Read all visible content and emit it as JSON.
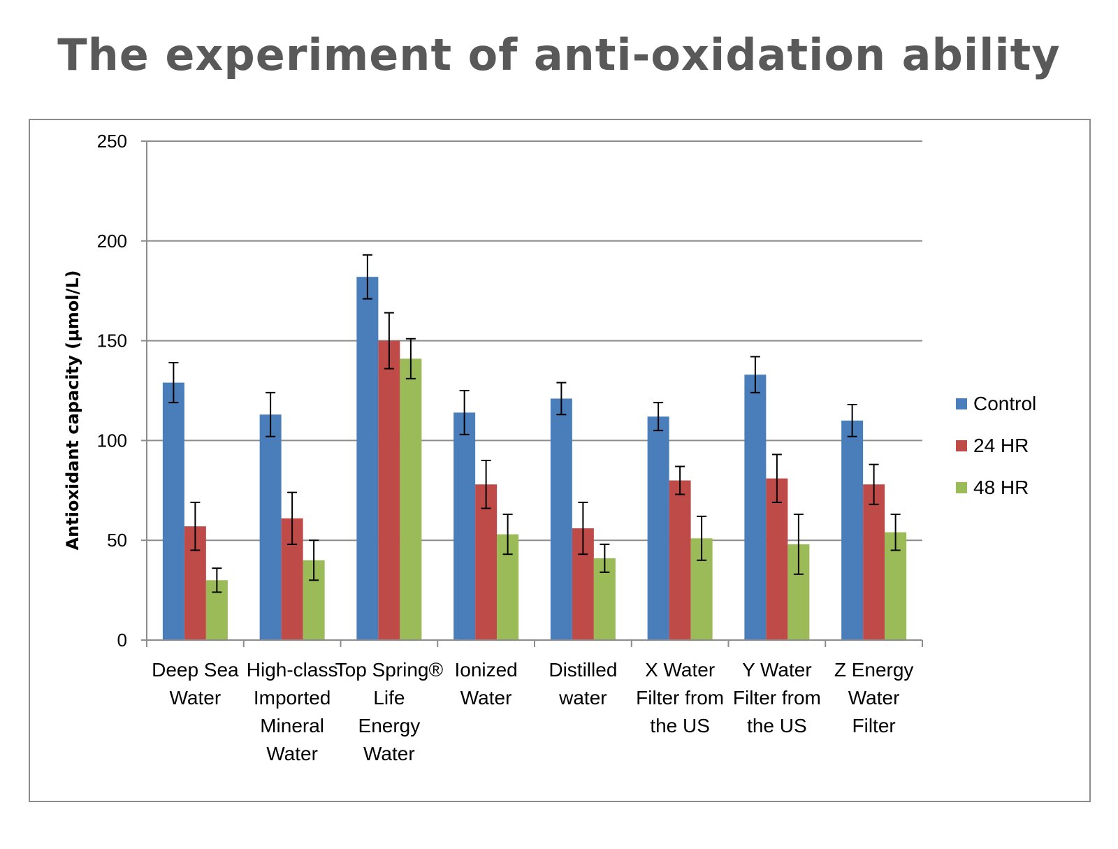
{
  "title": "The experiment of anti-oxidation ability",
  "chart_data": {
    "type": "bar",
    "title": "The experiment of anti-oxidation ability",
    "xlabel": "",
    "ylabel": "Antioxidant capacity (μmol/L)",
    "ylim": [
      0,
      250
    ],
    "yticks": [
      "0",
      "50",
      "100",
      "150",
      "200",
      "250"
    ],
    "grid": true,
    "legend_position": "right",
    "categories": [
      [
        "Deep Sea",
        "Water"
      ],
      [
        "High-class",
        "Imported",
        "Mineral",
        "Water"
      ],
      [
        "Top Spring®",
        "Life",
        "Energy",
        "Water"
      ],
      [
        "Ionized",
        "Water"
      ],
      [
        "Distilled",
        "water"
      ],
      [
        "X Water",
        "Filter from",
        "the US"
      ],
      [
        "Y Water",
        "Filter from",
        "the US"
      ],
      [
        "Z Energy",
        "Water",
        "Filter"
      ]
    ],
    "series": [
      {
        "name": "Control",
        "color": "#4a7ebb",
        "values": [
          129,
          113,
          182,
          114,
          121,
          112,
          133,
          110
        ],
        "errors": [
          10,
          11,
          11,
          11,
          8,
          7,
          9,
          8
        ]
      },
      {
        "name": "24 HR",
        "color": "#be4b48",
        "values": [
          57,
          61,
          150,
          78,
          56,
          80,
          81,
          78
        ],
        "errors": [
          12,
          13,
          14,
          12,
          13,
          7,
          12,
          10
        ]
      },
      {
        "name": "48 HR",
        "color": "#9bbb59",
        "values": [
          30,
          40,
          141,
          53,
          41,
          51,
          48,
          54
        ],
        "errors": [
          6,
          10,
          10,
          10,
          7,
          11,
          15,
          9
        ]
      }
    ]
  }
}
